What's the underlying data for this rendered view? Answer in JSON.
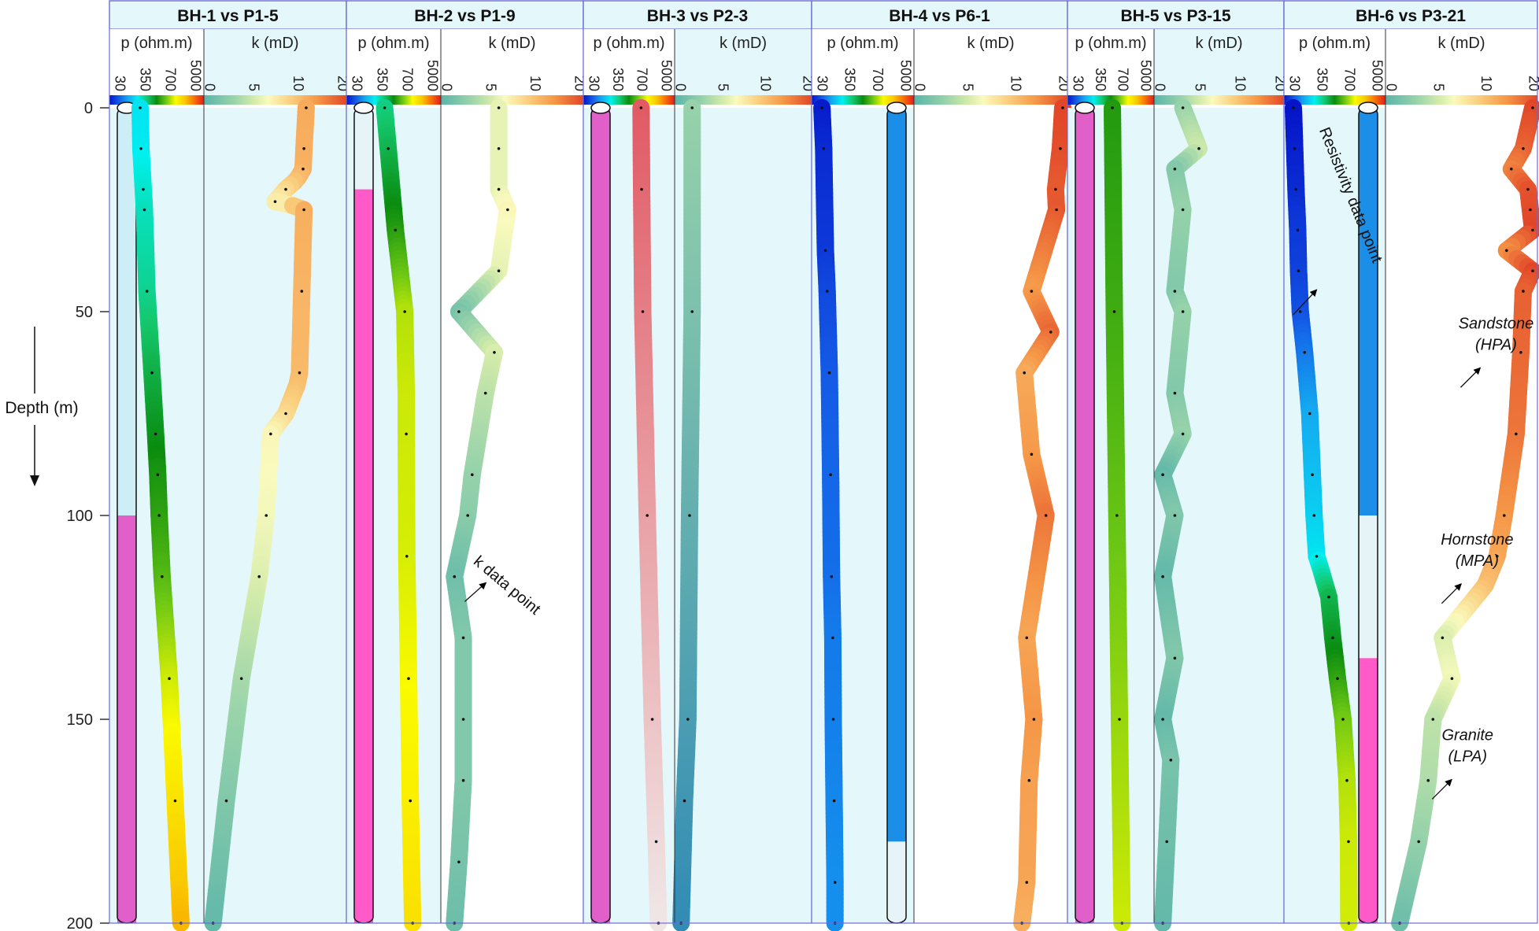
{
  "chart_data": {
    "type": "line",
    "title": "",
    "ylabel": "Depth (m)",
    "ylim": [
      0,
      200
    ],
    "ytick_labels": [
      "0",
      "50",
      "100",
      "150",
      "200"
    ],
    "rho_axis": {
      "label": "p (ohm.m)",
      "tick_labels": [
        "30",
        "350",
        "700",
        "5000"
      ]
    },
    "k_axis": {
      "label": "k (mD)",
      "tick_labels": [
        "0",
        "5",
        "10",
        "20"
      ]
    },
    "lithology_colors": {
      "sandstone_hpa": "#cdeef7",
      "hornstone_mpa": "#e6f4f8",
      "granite_lpa": "#e05fc9",
      "granite_lpa_alt": "#ff5ac8",
      "blue_unit": "#1b8fe8"
    },
    "panels": [
      {
        "title": "BH-1 vs P1-5",
        "lithology": [
          {
            "from": 0,
            "to": 100,
            "unit": "sandstone_hpa"
          },
          {
            "from": 100,
            "to": 200,
            "unit": "granite_lpa"
          }
        ],
        "resistivity": [
          {
            "depth": 0,
            "value": 300
          },
          {
            "depth": 10,
            "value": 310
          },
          {
            "depth": 20,
            "value": 340
          },
          {
            "depth": 25,
            "value": 355
          },
          {
            "depth": 45,
            "value": 390
          },
          {
            "depth": 65,
            "value": 460
          },
          {
            "depth": 80,
            "value": 510
          },
          {
            "depth": 90,
            "value": 540
          },
          {
            "depth": 100,
            "value": 560
          },
          {
            "depth": 115,
            "value": 600
          },
          {
            "depth": 140,
            "value": 700
          },
          {
            "depth": 170,
            "value": 1700
          },
          {
            "depth": 200,
            "value": 2700
          }
        ],
        "permeability": [
          {
            "depth": 0,
            "value": 12
          },
          {
            "depth": 10,
            "value": 11.5
          },
          {
            "depth": 15,
            "value": 11.3
          },
          {
            "depth": 20,
            "value": 8.7
          },
          {
            "depth": 23,
            "value": 7.5
          },
          {
            "depth": 25,
            "value": 11.5
          },
          {
            "depth": 45,
            "value": 11
          },
          {
            "depth": 65,
            "value": 10.5
          },
          {
            "depth": 75,
            "value": 8.7
          },
          {
            "depth": 80,
            "value": 7
          },
          {
            "depth": 100,
            "value": 6.5
          },
          {
            "depth": 115,
            "value": 5.7
          },
          {
            "depth": 140,
            "value": 3.7
          },
          {
            "depth": 170,
            "value": 2
          },
          {
            "depth": 200,
            "value": 0.5
          }
        ],
        "annotations": []
      },
      {
        "title": "BH-2 vs P1-9",
        "lithology": [
          {
            "from": 0,
            "to": 20,
            "unit": "hornstone_mpa"
          },
          {
            "from": 20,
            "to": 200,
            "unit": "granite_lpa_alt"
          }
        ],
        "resistivity": [
          {
            "depth": 0,
            "value": 400
          },
          {
            "depth": 10,
            "value": 450
          },
          {
            "depth": 30,
            "value": 550
          },
          {
            "depth": 50,
            "value": 680
          },
          {
            "depth": 80,
            "value": 710
          },
          {
            "depth": 110,
            "value": 800
          },
          {
            "depth": 140,
            "value": 1100
          },
          {
            "depth": 170,
            "value": 1400
          },
          {
            "depth": 200,
            "value": 1800
          }
        ],
        "permeability": [
          {
            "depth": 0,
            "value": 6
          },
          {
            "depth": 10,
            "value": 6
          },
          {
            "depth": 20,
            "value": 6
          },
          {
            "depth": 25,
            "value": 7
          },
          {
            "depth": 40,
            "value": 6
          },
          {
            "depth": 50,
            "value": 1.5
          },
          {
            "depth": 60,
            "value": 5.5
          },
          {
            "depth": 70,
            "value": 4.5
          },
          {
            "depth": 90,
            "value": 3
          },
          {
            "depth": 100,
            "value": 2.5
          },
          {
            "depth": 115,
            "value": 1
          },
          {
            "depth": 130,
            "value": 2
          },
          {
            "depth": 150,
            "value": 2
          },
          {
            "depth": 165,
            "value": 2
          },
          {
            "depth": 185,
            "value": 1.5
          },
          {
            "depth": 200,
            "value": 1
          }
        ],
        "annotations": [
          {
            "text": "k data point",
            "depth": 113,
            "k_value": 3.5
          }
        ]
      },
      {
        "title": "BH-3 vs P2-3",
        "lithology": [
          {
            "from": 0,
            "to": 200,
            "unit": "granite_lpa"
          }
        ],
        "resistivity": [
          {
            "depth": 0,
            "value": 700
          },
          {
            "depth": 20,
            "value": 800
          },
          {
            "depth": 50,
            "value": 1000
          },
          {
            "depth": 100,
            "value": 1800
          },
          {
            "depth": 150,
            "value": 2700
          },
          {
            "depth": 180,
            "value": 3400
          },
          {
            "depth": 200,
            "value": 3800
          }
        ],
        "permeability": [
          {
            "depth": 0,
            "value": 1.5
          },
          {
            "depth": 50,
            "value": 1.5
          },
          {
            "depth": 100,
            "value": 1.2
          },
          {
            "depth": 150,
            "value": 1
          },
          {
            "depth": 170,
            "value": 0.6
          },
          {
            "depth": 200,
            "value": 0.2
          }
        ],
        "annotations": []
      },
      {
        "title": "BH-4 vs P6-1",
        "lithology": [
          {
            "from": 0,
            "to": 180,
            "unit": "blue_unit"
          },
          {
            "from": 180,
            "to": 200,
            "unit": "hornstone_mpa"
          }
        ],
        "resistivity": [
          {
            "depth": 0,
            "value": 40
          },
          {
            "depth": 10,
            "value": 60
          },
          {
            "depth": 35,
            "value": 80
          },
          {
            "depth": 45,
            "value": 100
          },
          {
            "depth": 65,
            "value": 125
          },
          {
            "depth": 90,
            "value": 140
          },
          {
            "depth": 115,
            "value": 150
          },
          {
            "depth": 130,
            "value": 165
          },
          {
            "depth": 150,
            "value": 170
          },
          {
            "depth": 170,
            "value": 180
          },
          {
            "depth": 190,
            "value": 190
          },
          {
            "depth": 200,
            "value": 190
          }
        ],
        "permeability": [
          {
            "depth": 0,
            "value": 20
          },
          {
            "depth": 10,
            "value": 19.5
          },
          {
            "depth": 20,
            "value": 18.5
          },
          {
            "depth": 25,
            "value": 18.7
          },
          {
            "depth": 45,
            "value": 13.5
          },
          {
            "depth": 55,
            "value": 17.5
          },
          {
            "depth": 65,
            "value": 12
          },
          {
            "depth": 85,
            "value": 13.5
          },
          {
            "depth": 100,
            "value": 16.5
          },
          {
            "depth": 130,
            "value": 12.5
          },
          {
            "depth": 150,
            "value": 14
          },
          {
            "depth": 165,
            "value": 13
          },
          {
            "depth": 190,
            "value": 12.5
          },
          {
            "depth": 200,
            "value": 11.5
          }
        ],
        "annotations": []
      },
      {
        "title": "BH-5 vs P3-15",
        "lithology": [
          {
            "from": 0,
            "to": 200,
            "unit": "granite_lpa"
          }
        ],
        "resistivity": [
          {
            "depth": 0,
            "value": 550
          },
          {
            "depth": 50,
            "value": 580
          },
          {
            "depth": 100,
            "value": 620
          },
          {
            "depth": 150,
            "value": 660
          },
          {
            "depth": 200,
            "value": 700
          }
        ],
        "permeability": [
          {
            "depth": 0,
            "value": 3
          },
          {
            "depth": 10,
            "value": 5
          },
          {
            "depth": 15,
            "value": 2
          },
          {
            "depth": 25,
            "value": 3
          },
          {
            "depth": 45,
            "value": 2
          },
          {
            "depth": 50,
            "value": 3
          },
          {
            "depth": 70,
            "value": 2
          },
          {
            "depth": 80,
            "value": 3
          },
          {
            "depth": 90,
            "value": 0.5
          },
          {
            "depth": 100,
            "value": 2
          },
          {
            "depth": 115,
            "value": 0.5
          },
          {
            "depth": 135,
            "value": 2
          },
          {
            "depth": 150,
            "value": 0.5
          },
          {
            "depth": 160,
            "value": 1.5
          },
          {
            "depth": 180,
            "value": 1
          },
          {
            "depth": 200,
            "value": 0.5
          }
        ],
        "annotations": []
      },
      {
        "title": "BH-6 vs P3-21",
        "lithology": [
          {
            "from": 0,
            "to": 100,
            "unit": "blue_unit"
          },
          {
            "from": 100,
            "to": 135,
            "unit": "hornstone_mpa"
          },
          {
            "from": 135,
            "to": 200,
            "unit": "granite_lpa_alt"
          }
        ],
        "resistivity": [
          {
            "depth": 0,
            "value": 30
          },
          {
            "depth": 10,
            "value": 45
          },
          {
            "depth": 20,
            "value": 60
          },
          {
            "depth": 30,
            "value": 80
          },
          {
            "depth": 40,
            "value": 90
          },
          {
            "depth": 50,
            "value": 110
          },
          {
            "depth": 60,
            "value": 160
          },
          {
            "depth": 75,
            "value": 220
          },
          {
            "depth": 90,
            "value": 250
          },
          {
            "depth": 100,
            "value": 270
          },
          {
            "depth": 110,
            "value": 300
          },
          {
            "depth": 120,
            "value": 450
          },
          {
            "depth": 130,
            "value": 500
          },
          {
            "depth": 140,
            "value": 560
          },
          {
            "depth": 150,
            "value": 630
          },
          {
            "depth": 165,
            "value": 680
          },
          {
            "depth": 180,
            "value": 700
          },
          {
            "depth": 200,
            "value": 750
          }
        ],
        "permeability": [
          {
            "depth": 0,
            "value": 20
          },
          {
            "depth": 10,
            "value": 18
          },
          {
            "depth": 15,
            "value": 15.5
          },
          {
            "depth": 20,
            "value": 19
          },
          {
            "depth": 25,
            "value": 19.5
          },
          {
            "depth": 30,
            "value": 20
          },
          {
            "depth": 35,
            "value": 14.5
          },
          {
            "depth": 40,
            "value": 20
          },
          {
            "depth": 45,
            "value": 18
          },
          {
            "depth": 60,
            "value": 17.5
          },
          {
            "depth": 80,
            "value": 16.5
          },
          {
            "depth": 100,
            "value": 14
          },
          {
            "depth": 110,
            "value": 12.5
          },
          {
            "depth": 130,
            "value": 5.5
          },
          {
            "depth": 140,
            "value": 6.5
          },
          {
            "depth": 150,
            "value": 4.5
          },
          {
            "depth": 165,
            "value": 4
          },
          {
            "depth": 180,
            "value": 3
          },
          {
            "depth": 200,
            "value": 1
          }
        ],
        "annotations": [
          {
            "text": "Resistivity data point",
            "depth": 45,
            "rho_value": 100
          },
          {
            "text": "Sandstone",
            "text2": "(HPA)",
            "depth": 57,
            "k_value": 7
          },
          {
            "text": "Hornstone",
            "text2": "(MPA)",
            "depth": 110,
            "k_value": 5
          },
          {
            "text": "Granite",
            "text2": "(LPA)",
            "depth": 158,
            "k_value": 4
          }
        ]
      }
    ]
  }
}
